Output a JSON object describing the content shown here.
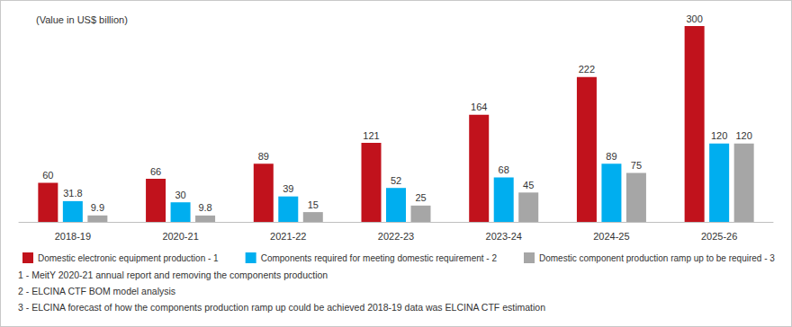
{
  "chart_data": {
    "type": "bar",
    "title": "(Value in US$ billion)",
    "categories": [
      "2018-19",
      "2020-21",
      "2021-22",
      "2022-23",
      "2023-24",
      "2024-25",
      "2025-26"
    ],
    "series": [
      {
        "name": "Domestic electronic equipment production - 1",
        "color": "#c1121c",
        "values": [
          60,
          66,
          89,
          121,
          164,
          222,
          300
        ]
      },
      {
        "name": "Components required for meeting domestic requirement - 2",
        "color": "#00aeef",
        "values": [
          31.8,
          30,
          39,
          52,
          68,
          89,
          120
        ]
      },
      {
        "name": "Domestic component production ramp up to be required - 3",
        "color": "#a6a6a6",
        "values": [
          9.9,
          9.8,
          15,
          25,
          45,
          75,
          120
        ]
      }
    ],
    "ylim": [
      0,
      300
    ],
    "grid": false,
    "legend": "bottom",
    "data_labels": true,
    "tick_labels": "x",
    "annotations": [
      "1 - MeitY 2020-21 annual report and removing the components production",
      "2 - ELCINA CTF BOM model analysis",
      "3 - ELCINA forecast of how the components production ramp up could be achieved 2018-19 data was ELCINA CTF estimation"
    ]
  }
}
